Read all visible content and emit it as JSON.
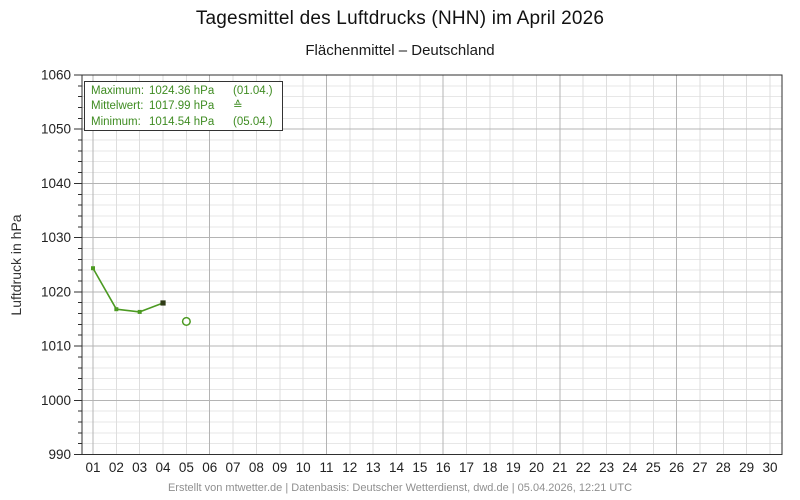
{
  "header": {
    "title": "Tagesmittel des Luftdrucks (NHN) im April 2026",
    "subtitle": "Flächenmittel – Deutschland"
  },
  "legend": {
    "rows": [
      {
        "label": "Maximum:",
        "value": "1024.36 hPa",
        "suffix": "(01.04.)"
      },
      {
        "label": "Mittelwert:",
        "value": "1017.99 hPa",
        "suffix": "≙"
      },
      {
        "label": "Minimum:",
        "value": "1014.54 hPa",
        "suffix": "(05.04.)"
      }
    ]
  },
  "footer": {
    "credit": "Erstellt von mtwetter.de | Datenbasis: Deutscher Wetterdienst, dwd.de | 05.04.2026, 12:21 UTC"
  },
  "colors": {
    "accent_green": "#4c9a22",
    "legend_text_green": "#3f8c22",
    "dark_marker": "#2f3b16",
    "plot_border": "#2f2f2f",
    "grid_major": "#b4b4b4",
    "grid_minor_h": "#e7e7e7",
    "grid_minor_v": "#dedede",
    "tick_text": "#222222",
    "footer_text": "#8f8f8f"
  },
  "chart_data": {
    "type": "line",
    "title": "Tagesmittel des Luftdrucks (NHN) im April 2026",
    "subtitle": "Flächenmittel – Deutschland",
    "xlabel": "",
    "ylabel": "Luftdruck in hPa",
    "ylim": [
      990,
      1060
    ],
    "y_major_step": 10,
    "y_minor_step": 2,
    "grid": true,
    "x_tick_labels": [
      "01",
      "02",
      "03",
      "04",
      "05",
      "06",
      "07",
      "08",
      "09",
      "10",
      "11",
      "12",
      "13",
      "14",
      "15",
      "16",
      "17",
      "18",
      "19",
      "20",
      "21",
      "22",
      "23",
      "24",
      "25",
      "26",
      "27",
      "28",
      "29",
      "30"
    ],
    "x_major_ticks": [
      1,
      6,
      11,
      16,
      21,
      26
    ],
    "legend_position": "top-left",
    "series": [
      {
        "x": [
          1,
          2,
          3,
          4
        ],
        "values": [
          1024.36,
          1016.8,
          1016.3,
          1017.95
        ],
        "line": true,
        "marker": "square",
        "last_point_dark": true
      },
      {
        "x": [
          5
        ],
        "values": [
          1014.54
        ],
        "line": false,
        "marker": "open-circle"
      }
    ],
    "stats_box": {
      "maximum_hpa": 1024.36,
      "maximum_date": "01.04.",
      "mean_hpa": 1017.99,
      "minimum_hpa": 1014.54,
      "minimum_date": "05.04."
    }
  }
}
